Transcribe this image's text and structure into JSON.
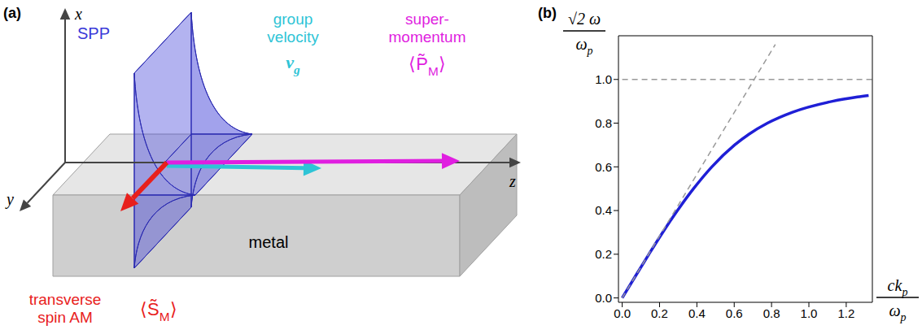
{
  "diagram": {
    "panel_label": "(a)",
    "axes": {
      "x": "x",
      "y": "y",
      "z": "z"
    },
    "wave": "SPP",
    "substrate": "metal",
    "vectors": [
      {
        "lines": [
          "group",
          "velocity"
        ],
        "symbol": {
          "text": "v",
          "sub": "g"
        },
        "color": "#2ec4d6"
      },
      {
        "lines": [
          "super-",
          "momentum"
        ],
        "symbol": {
          "prefix": "⟨",
          "text": "P̃",
          "sub": "M",
          "suffix": "⟩"
        },
        "color": "#e01ee0"
      },
      {
        "lines": [
          "transverse",
          "spin AM"
        ],
        "symbol": {
          "prefix": "⟨",
          "text": "S̃",
          "sub": "M",
          "suffix": "⟩"
        },
        "color": "#e8201c"
      }
    ]
  },
  "chart_data": {
    "type": "line",
    "panel_label": "(b)",
    "x_label": {
      "numerator": {
        "text": "ck",
        "sub": "p"
      },
      "denominator": {
        "text": "ω",
        "sub": "p"
      }
    },
    "y_label": {
      "numerator": {
        "text": "√2 ω"
      },
      "denominator": {
        "text": "ω",
        "sub": "p"
      }
    },
    "xlim": [
      -0.02,
      1.34
    ],
    "ylim": [
      -0.02,
      1.2
    ],
    "xticks": [
      {
        "value": 0,
        "label": "0.0"
      },
      {
        "value": 0.2,
        "label": "0.2"
      },
      {
        "value": 0.4,
        "label": "0.4"
      },
      {
        "value": 0.6,
        "label": "0.6"
      },
      {
        "value": 0.8,
        "label": "0.8"
      },
      {
        "value": 1,
        "label": "1.0"
      },
      {
        "value": 1.2,
        "label": "1.2"
      }
    ],
    "yticks": [
      {
        "value": 0,
        "label": "0.0"
      },
      {
        "value": 0.2,
        "label": "0.2"
      },
      {
        "value": 0.4,
        "label": "0.4"
      },
      {
        "value": 0.6,
        "label": "0.6"
      },
      {
        "value": 0.8,
        "label": "0.8"
      },
      {
        "value": 1,
        "label": "1.0"
      }
    ],
    "grid": false,
    "series": [
      {
        "color": "#1f1fd6",
        "line_style": "solid",
        "x": [
          0,
          0.071,
          0.143,
          0.217,
          0.296,
          0.382,
          0.48,
          0.602,
          0.68,
          0.778,
          0.912,
          1.126,
          1.261,
          1.32
        ],
        "values": [
          0,
          0.1,
          0.2,
          0.3,
          0.4,
          0.5,
          0.6,
          0.7,
          0.75,
          0.8,
          0.85,
          0.9,
          0.92,
          0.927
        ]
      },
      {
        "color": "#999999",
        "line_style": "dashed",
        "x": [
          0,
          0.82
        ],
        "values": [
          0,
          1.16
        ]
      },
      {
        "color": "#999999",
        "line_style": "dashed",
        "x": [
          0,
          1.34
        ],
        "values": [
          1,
          1
        ]
      }
    ]
  }
}
